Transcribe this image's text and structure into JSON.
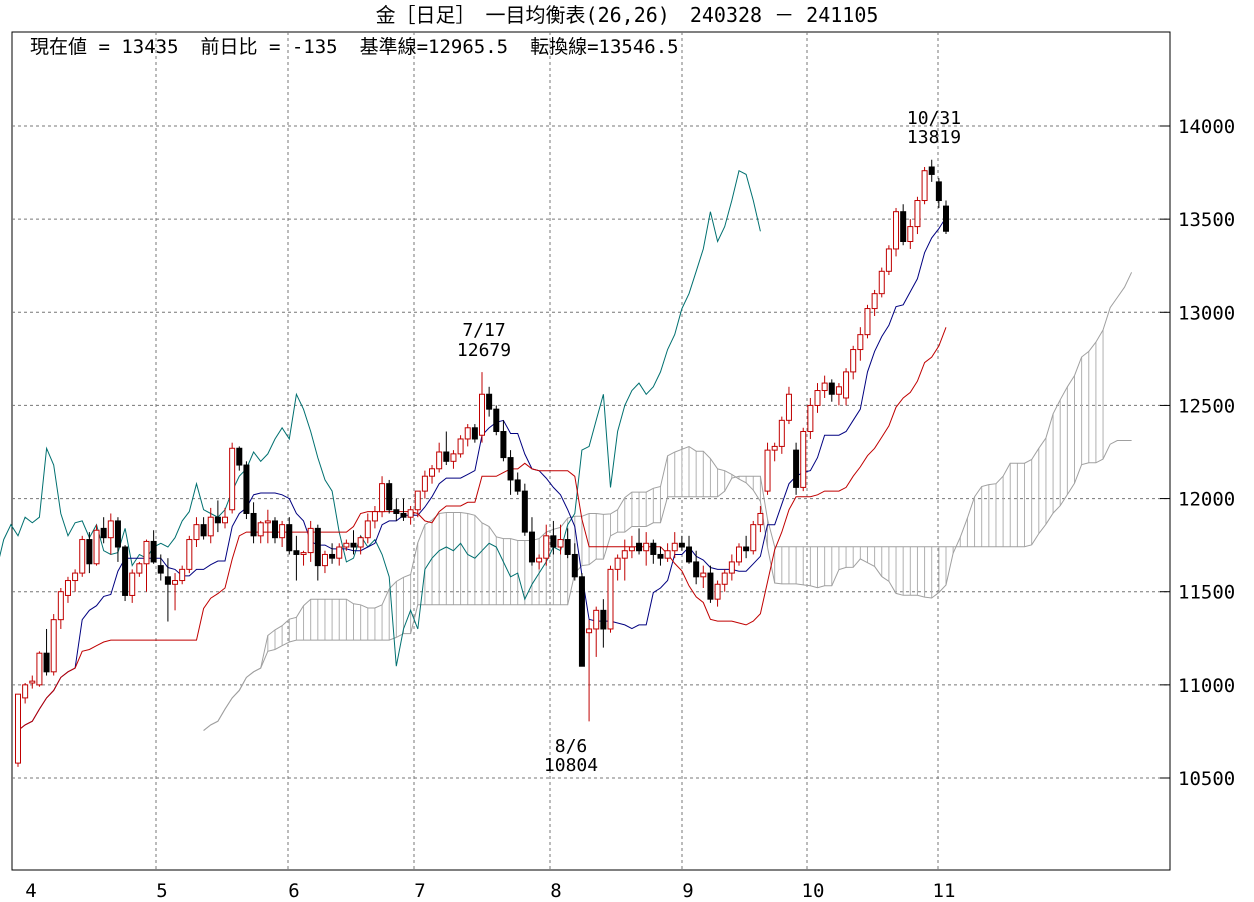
{
  "chart_data": {
    "type": "candlestick",
    "title": "金［日足］　一目均衡表(26,26)　240328 － 241105",
    "indicators": {
      "current_value": "現在値 = 13435",
      "change": "前日比 = -135",
      "kijun": "基準線=12965.5",
      "tenkan": "転換線=13546.5"
    },
    "x_tick_labels": [
      "4",
      "5",
      "6",
      "7",
      "8",
      "9",
      "10",
      "11"
    ],
    "y_tick_labels": [
      "10500",
      "11000",
      "11500",
      "12000",
      "12500",
      "13000",
      "13500",
      "14000"
    ],
    "ylim": [
      10000,
      14500
    ],
    "annotations": [
      {
        "date": "7/17",
        "value": "12679",
        "kind": "high"
      },
      {
        "date": "8/6",
        "value": "10804",
        "kind": "low"
      },
      {
        "date": "10/31",
        "value": "13819",
        "kind": "high"
      }
    ],
    "candles_approx": [
      [
        10580,
        10950,
        10560,
        10950
      ],
      [
        10930,
        11010,
        10900,
        11000
      ],
      [
        11010,
        11050,
        10980,
        11020
      ],
      [
        11000,
        11180,
        10990,
        11170
      ],
      [
        11170,
        11300,
        11050,
        11070
      ],
      [
        11070,
        11380,
        11050,
        11350
      ],
      [
        11350,
        11520,
        11300,
        11500
      ],
      [
        11480,
        11580,
        11440,
        11560
      ],
      [
        11560,
        11620,
        11500,
        11600
      ],
      [
        11600,
        11800,
        11580,
        11780
      ],
      [
        11780,
        11820,
        11600,
        11650
      ],
      [
        11650,
        11860,
        11640,
        11830
      ],
      [
        11840,
        11900,
        11760,
        11790
      ],
      [
        11790,
        11920,
        11700,
        11880
      ],
      [
        11880,
        11900,
        11660,
        11740
      ],
      [
        11740,
        11750,
        11450,
        11480
      ],
      [
        11480,
        11620,
        11440,
        11600
      ],
      [
        11600,
        11660,
        11580,
        11650
      ],
      [
        11650,
        11780,
        11500,
        11770
      ],
      [
        11770,
        11830,
        11650,
        11660
      ],
      [
        11640,
        11700,
        11560,
        11600
      ],
      [
        11580,
        11680,
        11340,
        11540
      ],
      [
        11540,
        11600,
        11400,
        11560
      ],
      [
        11560,
        11640,
        11540,
        11620
      ],
      [
        11620,
        11800,
        11600,
        11780
      ],
      [
        11780,
        11900,
        11740,
        11860
      ],
      [
        11860,
        11900,
        11780,
        11800
      ],
      [
        11800,
        11950,
        11760,
        11900
      ],
      [
        11900,
        11990,
        11820,
        11870
      ],
      [
        11870,
        11950,
        11840,
        11900
      ],
      [
        11940,
        12300,
        11920,
        12270
      ],
      [
        12270,
        12280,
        12150,
        12180
      ],
      [
        12180,
        12200,
        11890,
        11920
      ],
      [
        11920,
        11980,
        11760,
        11800
      ],
      [
        11800,
        11880,
        11760,
        11870
      ],
      [
        11870,
        11940,
        11760,
        11880
      ],
      [
        11880,
        11900,
        11760,
        11790
      ],
      [
        11790,
        11880,
        11740,
        11860
      ],
      [
        11860,
        11900,
        11700,
        11720
      ],
      [
        11720,
        11800,
        11560,
        11700
      ],
      [
        11700,
        11720,
        11640,
        11710
      ],
      [
        11710,
        11880,
        11660,
        11840
      ],
      [
        11840,
        11860,
        11560,
        11640
      ],
      [
        11640,
        11720,
        11600,
        11700
      ],
      [
        11700,
        11760,
        11650,
        11680
      ],
      [
        11680,
        11760,
        11640,
        11740
      ],
      [
        11740,
        11780,
        11720,
        11760
      ],
      [
        11760,
        11830,
        11700,
        11740
      ],
      [
        11740,
        11800,
        11700,
        11790
      ],
      [
        11790,
        11920,
        11760,
        11880
      ],
      [
        11880,
        11960,
        11840,
        11930
      ],
      [
        11930,
        12120,
        11900,
        12080
      ],
      [
        12080,
        12100,
        11920,
        11940
      ],
      [
        11940,
        12000,
        11880,
        11920
      ],
      [
        11920,
        12000,
        11880,
        11900
      ],
      [
        11900,
        11960,
        11860,
        11940
      ],
      [
        11940,
        12040,
        11900,
        12040
      ],
      [
        12040,
        12150,
        12000,
        12120
      ],
      [
        12120,
        12180,
        12080,
        12160
      ],
      [
        12160,
        12300,
        12140,
        12250
      ],
      [
        12250,
        12360,
        12180,
        12200
      ],
      [
        12200,
        12260,
        12160,
        12240
      ],
      [
        12240,
        12340,
        12220,
        12320
      ],
      [
        12320,
        12400,
        12280,
        12380
      ],
      [
        12380,
        12400,
        12300,
        12320
      ],
      [
        12340,
        12679,
        12300,
        12560
      ],
      [
        12560,
        12600,
        12440,
        12480
      ],
      [
        12480,
        12500,
        12340,
        12360
      ],
      [
        12360,
        12420,
        12200,
        12220
      ],
      [
        12220,
        12260,
        12020,
        12100
      ],
      [
        12100,
        12140,
        12020,
        12040
      ],
      [
        12040,
        12080,
        11800,
        11820
      ],
      [
        11820,
        11900,
        11640,
        11660
      ],
      [
        11660,
        11700,
        11620,
        11680
      ],
      [
        11680,
        11860,
        11640,
        11800
      ],
      [
        11800,
        11880,
        11700,
        11740
      ],
      [
        11740,
        11860,
        11700,
        11780
      ],
      [
        11780,
        11840,
        11680,
        11700
      ],
      [
        11700,
        11760,
        11560,
        11580
      ],
      [
        11580,
        11600,
        11100,
        11100
      ],
      [
        11280,
        11350,
        10804,
        11300
      ],
      [
        11300,
        11420,
        11150,
        11400
      ],
      [
        11400,
        11460,
        11200,
        11300
      ],
      [
        11300,
        11640,
        11280,
        11620
      ],
      [
        11620,
        11700,
        11560,
        11680
      ],
      [
        11680,
        11780,
        11560,
        11720
      ],
      [
        11720,
        11800,
        11680,
        11740
      ],
      [
        11760,
        11840,
        11700,
        11720
      ],
      [
        11720,
        11820,
        11640,
        11760
      ],
      [
        11760,
        11780,
        11650,
        11700
      ],
      [
        11700,
        11740,
        11640,
        11680
      ],
      [
        11680,
        11760,
        11660,
        11720
      ],
      [
        11720,
        11820,
        11680,
        11760
      ],
      [
        11760,
        11800,
        11720,
        11740
      ],
      [
        11740,
        11800,
        11650,
        11660
      ],
      [
        11660,
        11720,
        11540,
        11580
      ],
      [
        11580,
        11640,
        11520,
        11600
      ],
      [
        11600,
        11640,
        11440,
        11460
      ],
      [
        11460,
        11560,
        11420,
        11540
      ],
      [
        11540,
        11620,
        11500,
        11600
      ],
      [
        11600,
        11700,
        11560,
        11660
      ],
      [
        11660,
        11760,
        11640,
        11740
      ],
      [
        11740,
        11800,
        11680,
        11720
      ],
      [
        11720,
        11880,
        11700,
        11860
      ],
      [
        11860,
        11960,
        11820,
        11920
      ],
      [
        12040,
        12300,
        12020,
        12260
      ],
      [
        12260,
        12300,
        12200,
        12280
      ],
      [
        12280,
        12440,
        12240,
        12420
      ],
      [
        12420,
        12600,
        12400,
        12560
      ],
      [
        12260,
        12300,
        12020,
        12060
      ],
      [
        12060,
        12380,
        12040,
        12360
      ],
      [
        12360,
        12540,
        12320,
        12500
      ],
      [
        12500,
        12620,
        12460,
        12580
      ],
      [
        12580,
        12660,
        12540,
        12620
      ],
      [
        12620,
        12640,
        12520,
        12560
      ],
      [
        12560,
        12620,
        12500,
        12600
      ],
      [
        12540,
        12700,
        12500,
        12680
      ],
      [
        12680,
        12820,
        12640,
        12800
      ],
      [
        12800,
        12920,
        12740,
        12880
      ],
      [
        12880,
        13040,
        12860,
        13020
      ],
      [
        13020,
        13120,
        12980,
        13100
      ],
      [
        13100,
        13240,
        13080,
        13220
      ],
      [
        13220,
        13360,
        13200,
        13340
      ],
      [
        13340,
        13560,
        13300,
        13540
      ],
      [
        13540,
        13580,
        13360,
        13380
      ],
      [
        13380,
        13500,
        13340,
        13460
      ],
      [
        13460,
        13620,
        13420,
        13600
      ],
      [
        13600,
        13780,
        13580,
        13760
      ],
      [
        13780,
        13819,
        13700,
        13740
      ],
      [
        13700,
        13720,
        13560,
        13600
      ],
      [
        13570,
        13600,
        13420,
        13435
      ]
    ]
  }
}
